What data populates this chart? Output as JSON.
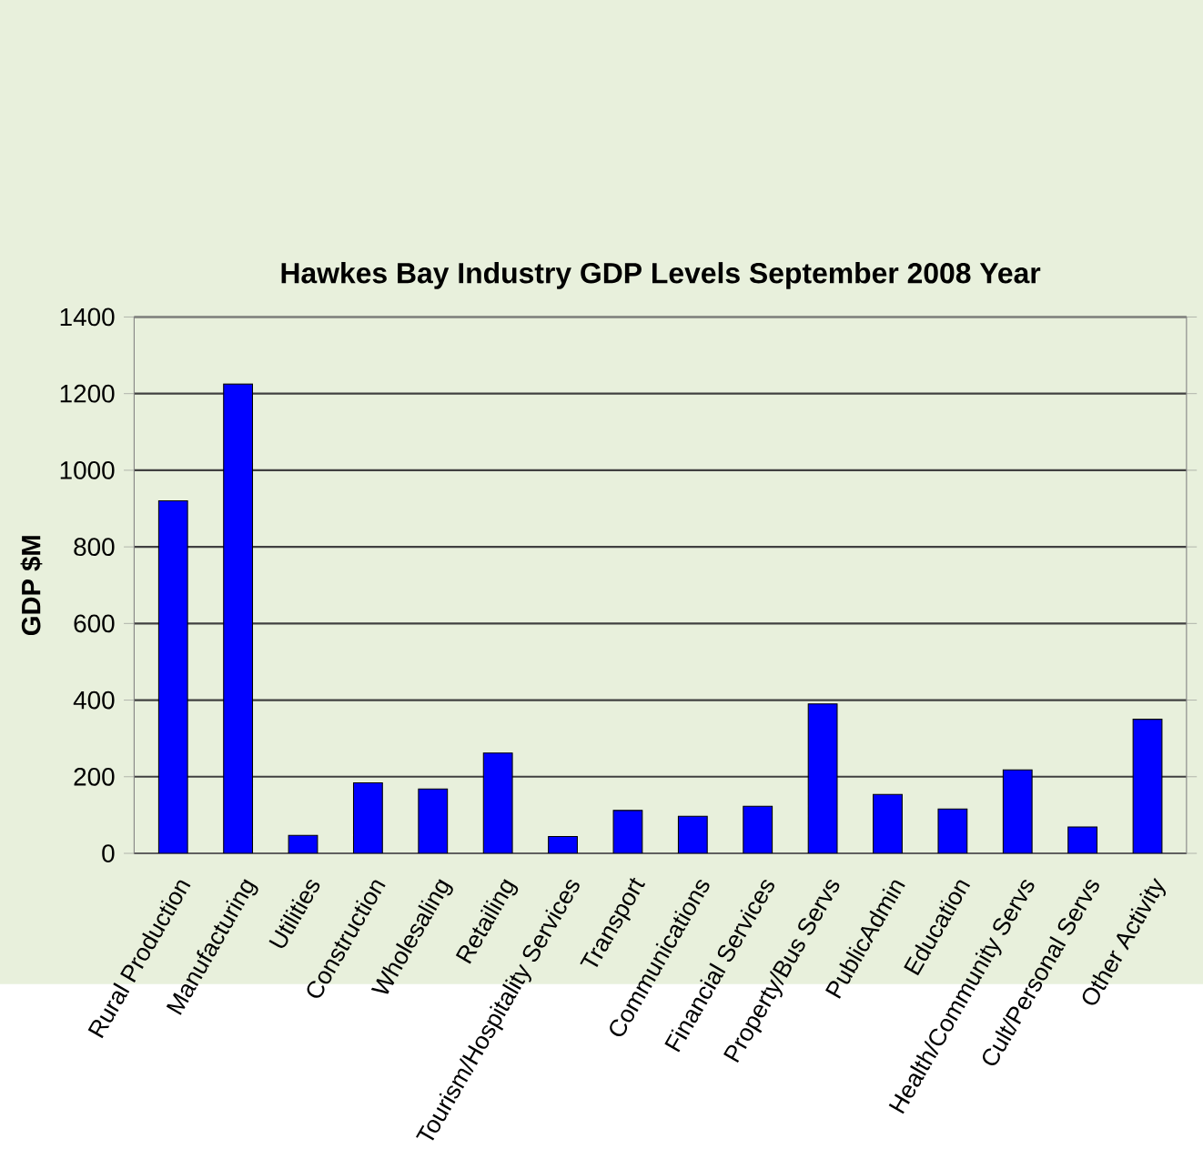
{
  "chart_data": {
    "type": "bar",
    "title": "Hawkes Bay Industry GDP Levels September 2008 Year",
    "ylabel": "GDP $M",
    "categories": [
      "Rural Production",
      "Manufacturing",
      "Utilities",
      "Construction",
      "Wholesaling",
      "Retailing",
      "Tourism/Hospitality Services",
      "Transport",
      "Communications",
      "Financial Services",
      "Property/Bus Servs",
      "PublicAdmin",
      "Education",
      "Health/Community Servs",
      "Cult/Personal Servs",
      "Other Activity"
    ],
    "values": [
      920,
      1225,
      47,
      184,
      168,
      262,
      44,
      112,
      97,
      123,
      390,
      154,
      116,
      218,
      69,
      350
    ],
    "color": "#0000ff",
    "ylim": [
      0,
      1400
    ],
    "yticks": [
      0,
      200,
      400,
      600,
      800,
      1000,
      1200,
      1400
    ],
    "grid": "y"
  }
}
